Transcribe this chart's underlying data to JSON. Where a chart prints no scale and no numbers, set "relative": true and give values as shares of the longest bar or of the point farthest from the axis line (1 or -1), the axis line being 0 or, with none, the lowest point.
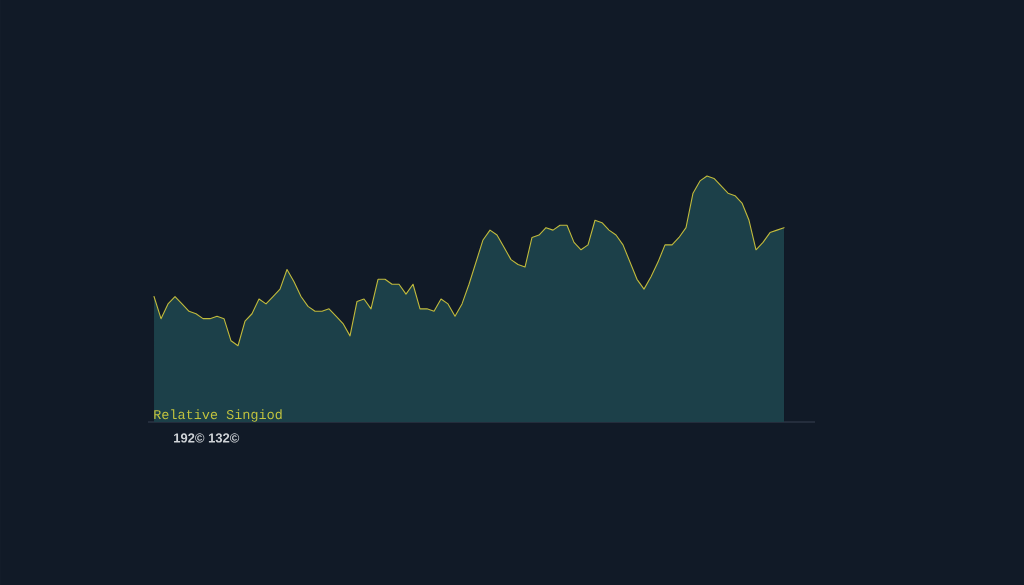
{
  "chart_data": {
    "type": "area",
    "relative": true,
    "categories": [
      null,
      null,
      null,
      null,
      null,
      null,
      null,
      null,
      null,
      null,
      null,
      null,
      null,
      null,
      null,
      null,
      null,
      null,
      null,
      null,
      null,
      null,
      null,
      null,
      null,
      null,
      null,
      null,
      null,
      null,
      null,
      null,
      null,
      null,
      null,
      null,
      null,
      null,
      null,
      null,
      null,
      null,
      null,
      null,
      null,
      null,
      null,
      null,
      null,
      null,
      null,
      null,
      null,
      null,
      null,
      null,
      null,
      null,
      null,
      null,
      null,
      null,
      null,
      null,
      null,
      null,
      null,
      null,
      null,
      null,
      null,
      null,
      null,
      null,
      null,
      null,
      null,
      null,
      null,
      null,
      null,
      null,
      null,
      null,
      null,
      null,
      null,
      null,
      null,
      null,
      null
    ],
    "series": [
      {
        "color": "#1c4049",
        "values": [
          0.51,
          0.42,
          0.48,
          0.51,
          0.48,
          0.45,
          0.44,
          0.42,
          0.42,
          0.43,
          0.42,
          0.33,
          0.31,
          0.41,
          0.44,
          0.5,
          0.48,
          0.51,
          0.54,
          0.62,
          0.57,
          0.51,
          0.47,
          0.45,
          0.45,
          0.46,
          0.43,
          0.4,
          0.35,
          0.49,
          0.5,
          0.46,
          0.58,
          0.58,
          0.56,
          0.56,
          0.52,
          0.56,
          0.46,
          0.46,
          0.45,
          0.5,
          0.48,
          0.43,
          0.48,
          0.56,
          0.65,
          0.74,
          0.78,
          0.76,
          0.71,
          0.66,
          0.64,
          0.63,
          0.75,
          0.76,
          0.79,
          0.78,
          0.8,
          0.8,
          0.73,
          0.7,
          0.72,
          0.82,
          0.81,
          0.78,
          0.76,
          0.72,
          0.65,
          0.58,
          0.54,
          0.59,
          0.65,
          0.72,
          0.72,
          0.75,
          0.79,
          0.93,
          0.98,
          1.0,
          0.99,
          0.96,
          0.93,
          0.92,
          0.89,
          0.82,
          0.7,
          0.73,
          0.77,
          0.78,
          0.79
        ]
      },
      {
        "type": "line",
        "color": "#c2bb3c",
        "values": [
          0.51,
          0.42,
          0.48,
          0.51,
          0.48,
          0.45,
          0.44,
          0.42,
          0.42,
          0.43,
          0.42,
          0.33,
          0.31,
          0.41,
          0.44,
          0.5,
          0.48,
          0.51,
          0.54,
          0.62,
          0.57,
          0.51,
          0.47,
          0.45,
          0.45,
          0.46,
          0.43,
          0.4,
          0.35,
          0.49,
          0.5,
          0.46,
          0.58,
          0.58,
          0.56,
          0.56,
          0.52,
          0.56,
          0.46,
          0.46,
          0.45,
          0.5,
          0.48,
          0.43,
          0.48,
          0.56,
          0.65,
          0.74,
          0.78,
          0.76,
          0.71,
          0.66,
          0.64,
          0.63,
          0.75,
          0.76,
          0.79,
          0.78,
          0.8,
          0.8,
          0.73,
          0.7,
          0.72,
          0.82,
          0.81,
          0.78,
          0.76,
          0.72,
          0.65,
          0.58,
          0.54,
          0.59,
          0.65,
          0.72,
          0.72,
          0.75,
          0.79,
          0.93,
          0.98,
          1.0,
          0.99,
          0.96,
          0.93,
          0.92,
          0.89,
          0.82,
          0.7,
          0.73,
          0.77,
          0.78,
          0.79
        ]
      }
    ],
    "annotations": [
      "Relative Singiod",
      "192© 132©"
    ]
  }
}
